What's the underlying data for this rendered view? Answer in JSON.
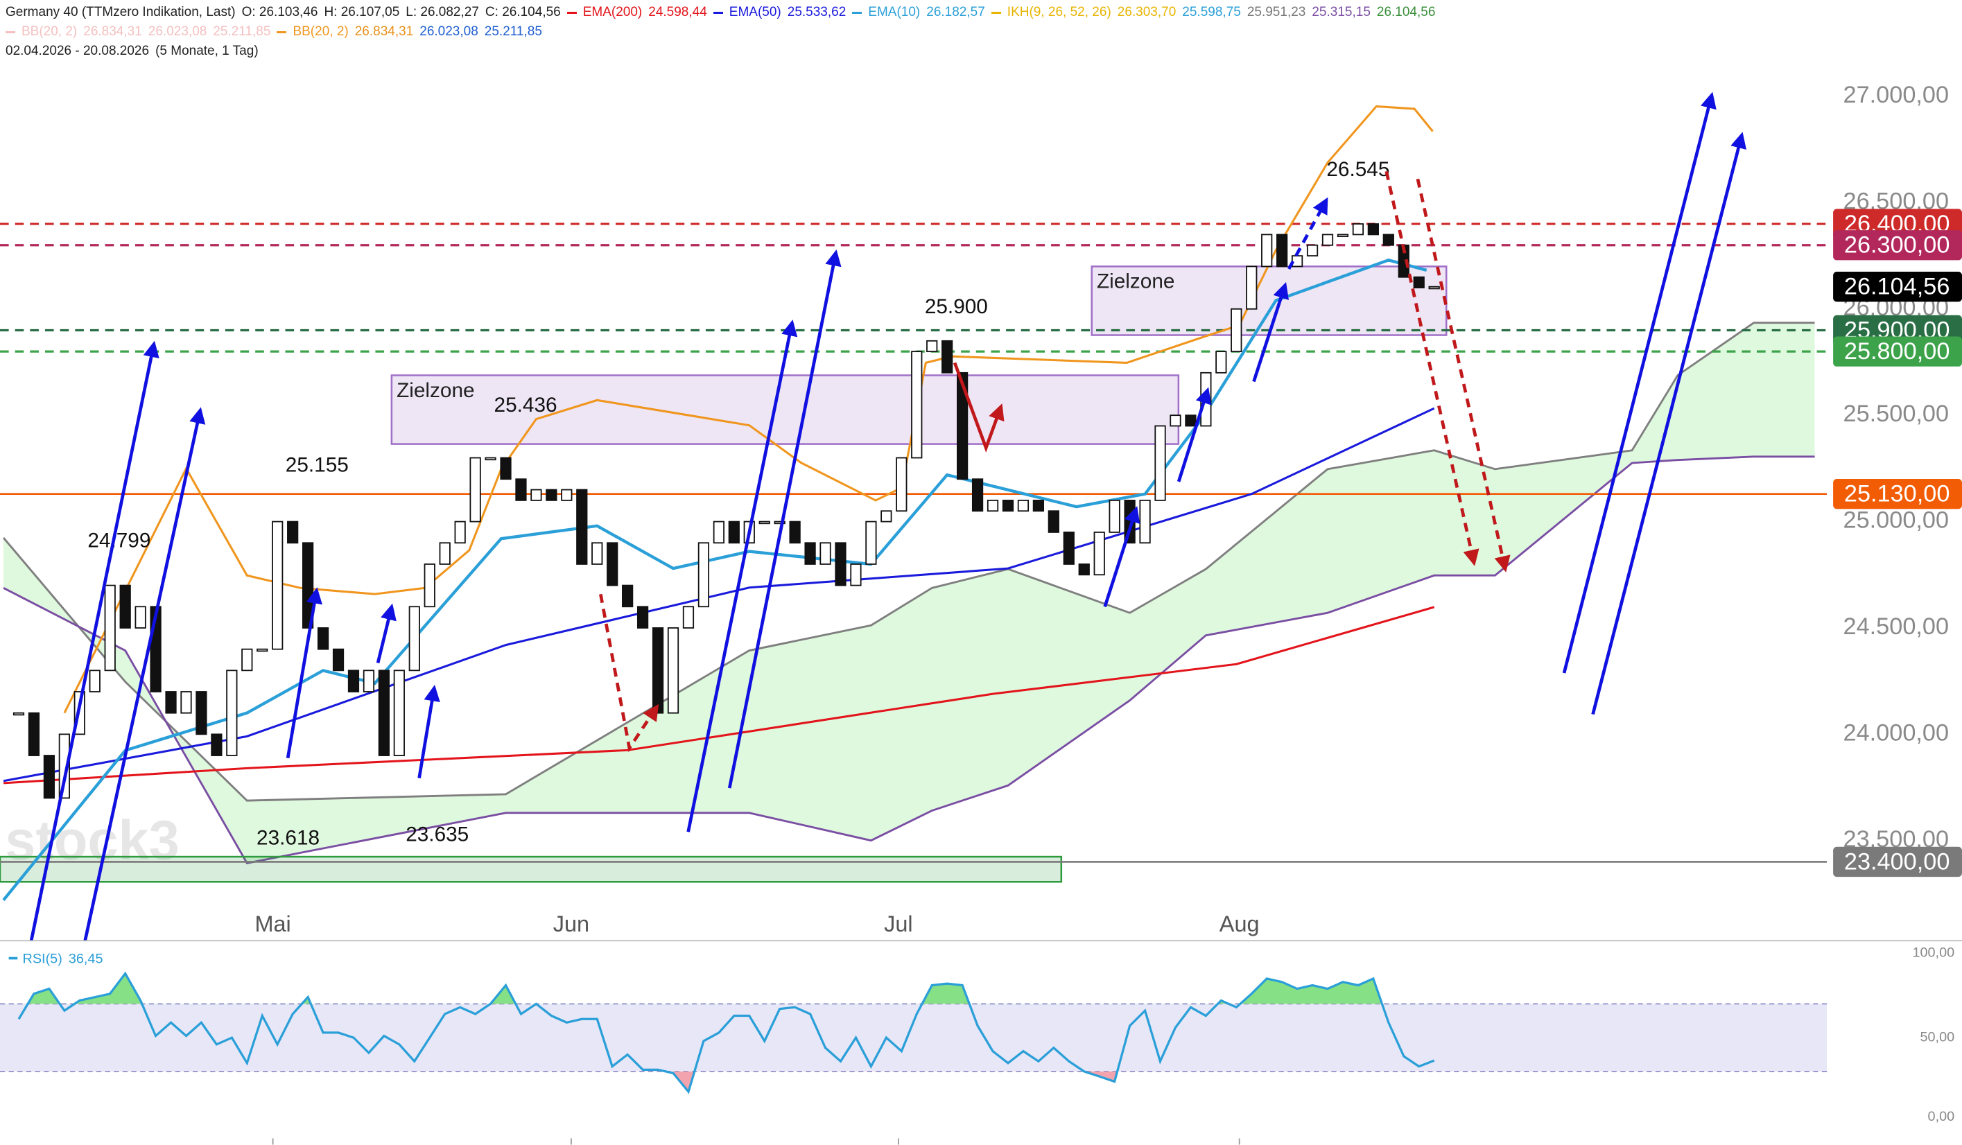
{
  "header": {
    "instrument": "Germany 40 (TTMzero Indikation, Last)",
    "ohlc": [
      "O: 26.103,46",
      "H: 26.107,05",
      "L: 26.082,27",
      "C: 26.104,56"
    ],
    "ikh": {
      "name": "IKH(9, 26, 52, 26)",
      "color": "#e8b400",
      "values": [
        {
          "text": "26.303,70",
          "color": "#e8b400"
        },
        {
          "text": "25.598,75",
          "color": "#2a9fd8"
        },
        {
          "text": "25.951,23",
          "color": "#777777"
        },
        {
          "text": "25.315,15",
          "color": "#7a4ea3"
        },
        {
          "text": "26.104,56",
          "color": "#3a8f3a"
        }
      ]
    },
    "bb_faded": {
      "name": "BB(20, 2)",
      "color": "#f4c0c0",
      "values": [
        "26.834,31",
        "26.023,08",
        "25.211,85"
      ]
    },
    "bb_values": [
      {
        "text": "26.834,31",
        "color": "#e8901a"
      },
      {
        "text": "26.023,08",
        "color": "#1f5fd0"
      },
      {
        "text": "25.211,85",
        "color": "#1f5fd0"
      }
    ],
    "range": "02.04.2026 - 20.08.2026",
    "period": "(5 Monate, 1 Tag)"
  },
  "chart_data": [
    {
      "type": "candlestick",
      "watermark": "stock3",
      "xlim": [
        -1.23,
        118.8
      ],
      "xticks": [
        {
          "value": 16.7,
          "label": "Mai"
        },
        {
          "value": 36.3,
          "label": "Jun"
        },
        {
          "value": 57.8,
          "label": "Jul"
        },
        {
          "value": 80.2,
          "label": "Aug"
        }
      ],
      "ylim": [
        23029,
        27453
      ],
      "yticks": [
        {
          "value": 27000,
          "label": "27.000,00"
        },
        {
          "value": 26500,
          "label": "26.500,00"
        },
        {
          "value": 26000,
          "label": "26.000,00"
        },
        {
          "value": 25500,
          "label": "25.500,00"
        },
        {
          "value": 25000,
          "label": "25.000,00"
        },
        {
          "value": 24500,
          "label": "24.500,00"
        },
        {
          "value": 24000,
          "label": "24.000,00"
        },
        {
          "value": 23500,
          "label": "23.500,00"
        }
      ],
      "grid": false,
      "up_color": "#ffffff",
      "down_color": "#111111",
      "values": [
        24100,
        23900,
        23700,
        24000,
        24200,
        24300,
        24700,
        24500,
        24600,
        24200,
        24100,
        24200,
        24000,
        23900,
        24300,
        24400,
        24400,
        25000,
        24900,
        24500,
        24400,
        24300,
        24200,
        24300,
        23900,
        24300,
        24600,
        24800,
        24900,
        25000,
        25300,
        25300,
        25200,
        25100,
        25150,
        25100,
        25150,
        24800,
        24900,
        24700,
        24600,
        24500,
        24100,
        24500,
        24600,
        24900,
        25000,
        24900,
        25000,
        25000,
        25000,
        24900,
        24800,
        24900,
        24700,
        24800,
        25000,
        25050,
        25300,
        25800,
        25850,
        25700,
        25200,
        25050,
        25100,
        25050,
        25100,
        25050,
        24950,
        24800,
        24750,
        24950,
        25100,
        24900,
        25100,
        25450,
        25500,
        25450,
        25700,
        25800,
        26000,
        26200,
        26350,
        26200,
        26250,
        26300,
        26350,
        26350,
        26400,
        26350,
        26300,
        26150,
        26100,
        26104.56
      ],
      "series": [
        {
          "name": "EMA(200)",
          "color": "#e3141b",
          "last_label": "24.598,44",
          "x": [
            -1,
            15,
            40,
            64,
            80,
            93
          ],
          "values": [
            23770,
            23840,
            23925,
            24190,
            24330,
            24598
          ]
        },
        {
          "name": "EMA(50)",
          "color": "#1a1adc",
          "last_label": "25.533,62",
          "x": [
            -1,
            15,
            32,
            48,
            65,
            81,
            93
          ],
          "values": [
            23780,
            23990,
            24420,
            24690,
            24780,
            25130,
            25533
          ]
        },
        {
          "name": "EMA(10)",
          "color": "#2a9fd8",
          "last_label": "26.182,57",
          "x": [
            -1,
            7,
            15,
            20,
            23.4,
            31.7,
            38,
            43,
            48,
            56,
            61,
            69.5,
            74,
            77.7,
            82.6,
            90,
            92.5
          ],
          "values": [
            23220,
            23924,
            24100,
            24300,
            24240,
            24920,
            24980,
            24780,
            24860,
            24800,
            25220,
            25070,
            25130,
            25480,
            26040,
            26230,
            26182
          ]
        },
        {
          "name": "BB(20, 2)",
          "color": "#f0961e",
          "x": [
            3,
            11,
            15,
            18.5,
            23.4,
            26.7,
            29.6,
            31.7,
            34,
            38,
            43,
            48,
            51.4,
            56.3,
            58,
            59.6,
            61.3,
            72.8,
            77.7,
            80.2,
            82.6,
            86,
            89.2,
            91.7,
            92.9
          ],
          "values": [
            24100,
            25250,
            24747,
            24688,
            24659,
            24688,
            24865,
            25247,
            25482,
            25571,
            25512,
            25453,
            25277,
            25100,
            25159,
            25747,
            25777,
            25747,
            25865,
            25924,
            26277,
            26688,
            26953,
            26941,
            26835
          ]
        }
      ],
      "cloud": {
        "x": [
          -1,
          7,
          15,
          32,
          48,
          56,
          60,
          65,
          73,
          78,
          86,
          93,
          97,
          106,
          109,
          114,
          118
        ],
        "span_a": [
          24924,
          24247,
          23688,
          23718,
          24394,
          24512,
          24688,
          24777,
          24571,
          24777,
          25247,
          25335,
          25247,
          25335,
          25688,
          25935,
          25935
        ],
        "span_b": [
          24688,
          24394,
          23394,
          23630,
          23630,
          23500,
          23641,
          23759,
          24159,
          24465,
          24571,
          24747,
          24747,
          25276,
          25290,
          25306,
          25306
        ],
        "color_a": "#7f7f7f",
        "color_b": "#7a4ea3",
        "fill": "#d4f7d4"
      },
      "levels": [
        {
          "value": 26400,
          "label": "26.400,00",
          "color": "#cf2a2a",
          "style": "dashed"
        },
        {
          "value": 26300,
          "label": "26.300,00",
          "color": "#b3285a",
          "style": "dashed"
        },
        {
          "value": 25900,
          "label": "25.900,00",
          "color": "#2a6e45",
          "style": "dashed"
        },
        {
          "value": 25800,
          "label": "25.800,00",
          "color": "#3da34a",
          "style": "dashed"
        },
        {
          "value": 26104.56,
          "label": "26.104,56",
          "color": "#000000",
          "style": "none"
        },
        {
          "value": 25130,
          "label": "25.130,00",
          "color": "#f25c05",
          "style": "solid"
        },
        {
          "value": 23400,
          "label": "23.400,00",
          "color": "#7a7a7a",
          "style": "solid"
        }
      ],
      "zones": [
        {
          "label": "Zielzone",
          "xlim": [
            24.5,
            76.2
          ],
          "ylim": [
            25365,
            25688
          ],
          "color": "#a070c8"
        },
        {
          "label": "Zielzone",
          "xlim": [
            70.5,
            93.8
          ],
          "ylim": [
            25877,
            26200
          ],
          "color": "#a070c8"
        },
        {
          "xlim": [
            -1.23,
            68.5
          ],
          "ylim": [
            23306,
            23424
          ],
          "color": "#2e9b3f"
        }
      ],
      "annotations": [
        {
          "value": 24799,
          "label": "24.799",
          "x": 6.6,
          "position": "above"
        },
        {
          "value": 25155,
          "label": "25.155",
          "x": 19.6,
          "position": "above"
        },
        {
          "value": 23618,
          "label": "23.618",
          "x": 17.7,
          "position": "below"
        },
        {
          "value": 23635,
          "label": "23.635",
          "x": 27.5,
          "position": "below"
        },
        {
          "value": 25436,
          "label": "25.436",
          "x": 33.3,
          "position": "above"
        },
        {
          "value": 25900,
          "label": "25.900",
          "x": 61.6,
          "position": "above"
        },
        {
          "value": 26545,
          "label": "26.545",
          "x": 88,
          "position": "above"
        }
      ]
    },
    {
      "type": "line",
      "name": "RSI(5)",
      "value_label": "36,45",
      "color": "#2a9fd8",
      "values": [
        61,
        76,
        79,
        66,
        72,
        74,
        76,
        88,
        72,
        51,
        59,
        51,
        59,
        46,
        50,
        35,
        63,
        46,
        64,
        74,
        53,
        53,
        50,
        41,
        51,
        46,
        36,
        50,
        64,
        68,
        64,
        70,
        81,
        64,
        70,
        63,
        59,
        61,
        61,
        33,
        40,
        31,
        31,
        29,
        18,
        48,
        53,
        63,
        63,
        48,
        67,
        68,
        64,
        44,
        36,
        50,
        33,
        50,
        42,
        64,
        81,
        82,
        81,
        57,
        42,
        35,
        42,
        36,
        44,
        36,
        30,
        27,
        24,
        57,
        66,
        36,
        56,
        68,
        63,
        72,
        68,
        76,
        85,
        83,
        79,
        81,
        79,
        83,
        81,
        85,
        59,
        39,
        33,
        36.45
      ],
      "ylim": [
        0,
        100
      ],
      "yticks": [
        {
          "value": 0,
          "label": "0,00"
        },
        {
          "value": 50,
          "label": "50,00"
        },
        {
          "value": 100,
          "label": "100,00"
        }
      ],
      "band": [
        30,
        70
      ]
    }
  ]
}
